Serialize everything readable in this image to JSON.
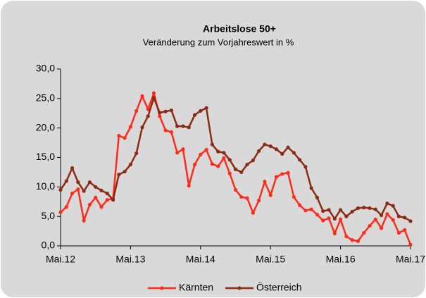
{
  "chart_data": {
    "type": "line",
    "title": "Arbeitslose 50+",
    "subtitle": "Veränderung zum Vorjahreswert in %",
    "categories": [
      "Mai.12",
      null,
      null,
      null,
      null,
      null,
      null,
      null,
      null,
      null,
      null,
      null,
      "Mai.13",
      null,
      null,
      null,
      null,
      null,
      null,
      null,
      null,
      null,
      null,
      null,
      "Mai.14",
      null,
      null,
      null,
      null,
      null,
      null,
      null,
      null,
      null,
      null,
      null,
      "Mai.15",
      null,
      null,
      null,
      null,
      null,
      null,
      null,
      null,
      null,
      null,
      null,
      "Mai.16",
      null,
      null,
      null,
      null,
      null,
      null,
      null,
      null,
      null,
      null,
      null,
      "Mai.17"
    ],
    "series": [
      {
        "name": "Kärnten",
        "color": "#ff2a1a",
        "values": [
          5.7,
          6.6,
          8.9,
          9.6,
          4.3,
          7.0,
          8.2,
          6.6,
          7.8,
          8.0,
          18.7,
          18.3,
          20.2,
          22.9,
          25.4,
          23.2,
          25.9,
          22.0,
          19.6,
          19.3,
          15.8,
          16.4,
          10.2,
          13.8,
          15.5,
          16.3,
          13.9,
          13.5,
          14.9,
          12.3,
          9.5,
          8.3,
          8.1,
          5.6,
          7.7,
          10.9,
          8.6,
          11.7,
          12.2,
          12.4,
          8.3,
          6.9,
          6.0,
          6.2,
          5.3,
          4.3,
          4.7,
          2.1,
          4.5,
          1.6,
          1.0,
          0.8,
          2.2,
          3.4,
          4.5,
          3.0,
          5.4,
          4.4,
          2.2,
          2.7,
          0.2
        ]
      },
      {
        "name": "Österreich",
        "color": "#8b2b13",
        "values": [
          9.5,
          11.0,
          13.2,
          10.8,
          9.3,
          10.8,
          10.0,
          9.4,
          8.9,
          7.8,
          12.1,
          12.6,
          13.8,
          15.7,
          20.1,
          22.0,
          25.1,
          22.6,
          22.8,
          23.0,
          20.3,
          20.3,
          20.1,
          22.2,
          22.9,
          23.4,
          17.2,
          16.0,
          15.8,
          14.6,
          13.0,
          12.5,
          13.8,
          14.5,
          16.1,
          17.2,
          16.9,
          16.4,
          15.6,
          16.7,
          15.8,
          14.6,
          13.4,
          9.8,
          8.2,
          5.9,
          6.1,
          4.6,
          6.1,
          5.0,
          5.8,
          6.4,
          6.5,
          6.4,
          6.2,
          5.2,
          7.2,
          6.8,
          5.0,
          4.8,
          4.2
        ]
      }
    ],
    "ylim": [
      0,
      30
    ],
    "yticks": [
      {
        "value": 0,
        "label": "0,0"
      },
      {
        "value": 5,
        "label": "5,0"
      },
      {
        "value": 10,
        "label": "10,0"
      },
      {
        "value": 15,
        "label": "15,0"
      },
      {
        "value": 20,
        "label": "20,0"
      },
      {
        "value": 25,
        "label": "25,0"
      },
      {
        "value": 30,
        "label": "30,0"
      }
    ],
    "legend": "bottom"
  }
}
